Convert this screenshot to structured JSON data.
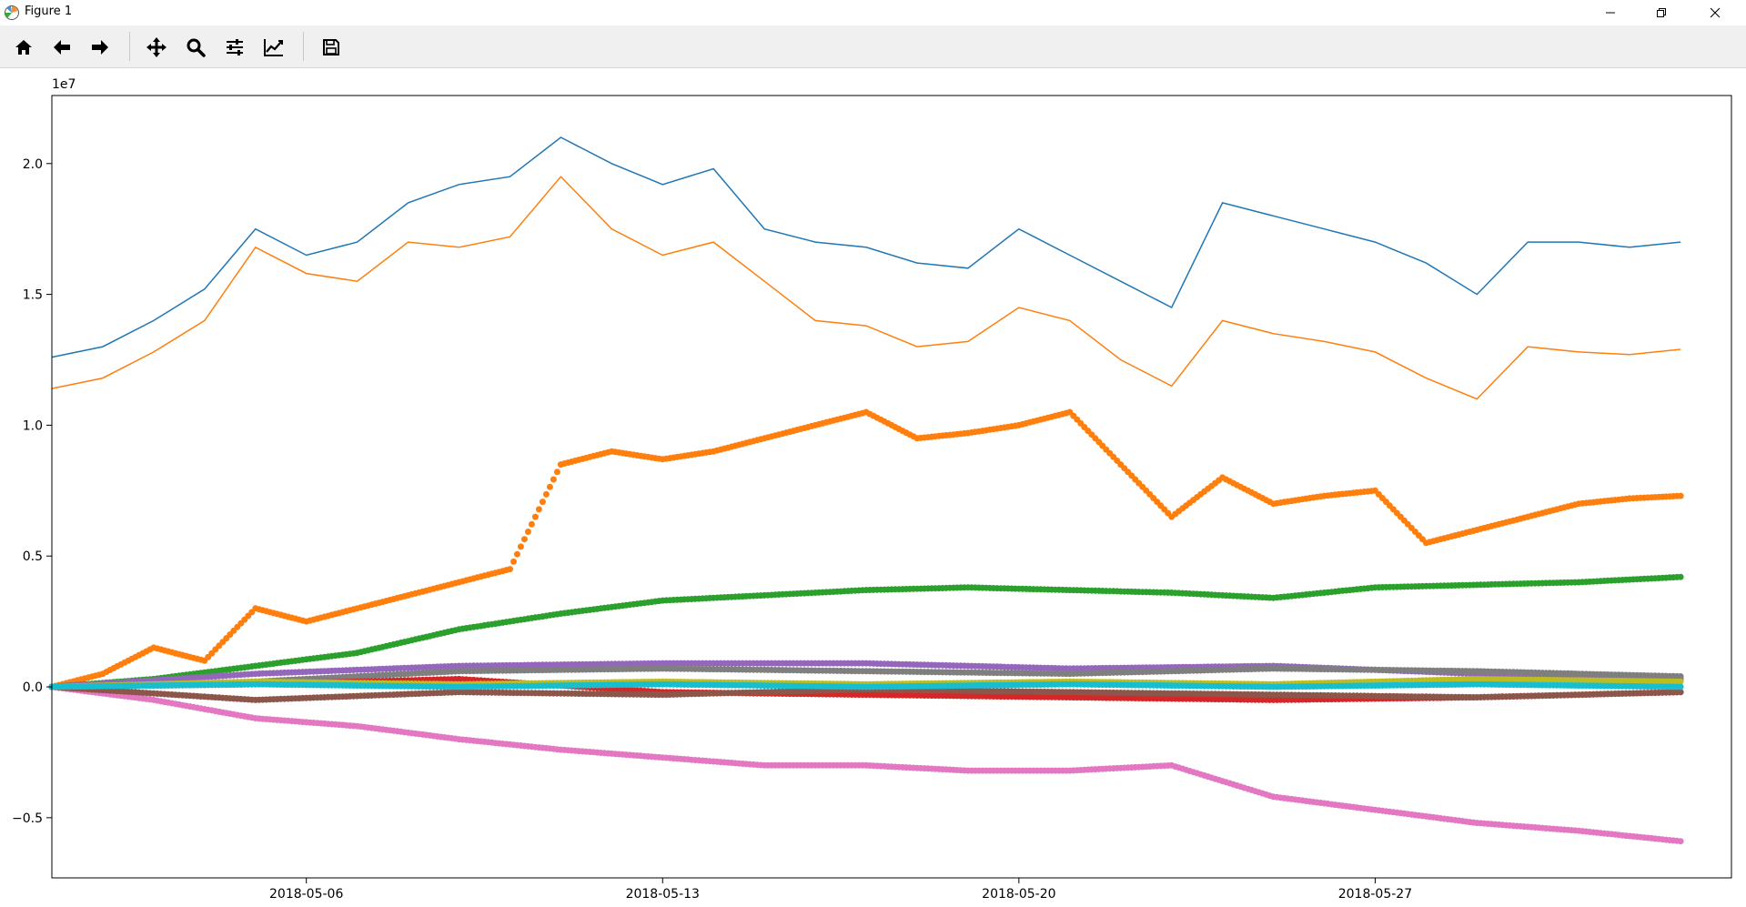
{
  "window": {
    "title": "Figure 1",
    "controls": [
      "minimize",
      "maximize",
      "close"
    ]
  },
  "toolbar": {
    "buttons": [
      {
        "name": "home-button",
        "icon": "home-icon"
      },
      {
        "name": "back-button",
        "icon": "arrow-left-icon"
      },
      {
        "name": "forward-button",
        "icon": "arrow-right-icon"
      },
      {
        "name": "pan-button",
        "icon": "move-arrows-icon"
      },
      {
        "name": "zoom-button",
        "icon": "magnifier-icon"
      },
      {
        "name": "subplots-button",
        "icon": "sliders-icon"
      },
      {
        "name": "edit-axes-button",
        "icon": "line-chart-icon"
      },
      {
        "name": "save-button",
        "icon": "floppy-disk-icon"
      }
    ]
  },
  "chart_data": {
    "type": "line",
    "offset_label": "1e7",
    "xlim": [
      "2018-05-01",
      "2018-06-03"
    ],
    "ylim": [
      -0.73,
      2.26
    ],
    "x_ticks": [
      "2018-05-06",
      "2018-05-13",
      "2018-05-20",
      "2018-05-27"
    ],
    "y_ticks": [
      "2.0",
      "1.5",
      "1.0",
      "0.5",
      "0.0",
      "−0.5"
    ],
    "y_tick_values": [
      2.0,
      1.5,
      1.0,
      0.5,
      0.0,
      -0.5
    ],
    "grid": false,
    "legend": "none",
    "series": [
      {
        "style": "line",
        "color": "#1f77b4",
        "x": [
          "2018-05-01",
          "2018-05-02",
          "2018-05-03",
          "2018-05-04",
          "2018-05-05",
          "2018-05-06",
          "2018-05-07",
          "2018-05-08",
          "2018-05-09",
          "2018-05-10",
          "2018-05-11",
          "2018-05-12",
          "2018-05-13",
          "2018-05-14",
          "2018-05-15",
          "2018-05-16",
          "2018-05-17",
          "2018-05-18",
          "2018-05-19",
          "2018-05-20",
          "2018-05-21",
          "2018-05-22",
          "2018-05-23",
          "2018-05-24",
          "2018-05-25",
          "2018-05-26",
          "2018-05-27",
          "2018-05-28",
          "2018-05-29",
          "2018-05-30",
          "2018-05-31",
          "2018-06-01",
          "2018-06-02"
        ],
        "y": [
          1.26,
          1.3,
          1.4,
          1.52,
          1.75,
          1.65,
          1.7,
          1.85,
          1.92,
          1.95,
          2.1,
          2.0,
          1.92,
          1.98,
          1.75,
          1.7,
          1.68,
          1.62,
          1.6,
          1.75,
          1.65,
          1.55,
          1.45,
          1.85,
          1.8,
          1.75,
          1.7,
          1.62,
          1.5,
          1.7,
          1.7,
          1.68,
          1.7
        ]
      },
      {
        "style": "line",
        "color": "#ff7f0e",
        "x": [
          "2018-05-01",
          "2018-05-02",
          "2018-05-03",
          "2018-05-04",
          "2018-05-05",
          "2018-05-06",
          "2018-05-07",
          "2018-05-08",
          "2018-05-09",
          "2018-05-10",
          "2018-05-11",
          "2018-05-12",
          "2018-05-13",
          "2018-05-14",
          "2018-05-15",
          "2018-05-16",
          "2018-05-17",
          "2018-05-18",
          "2018-05-19",
          "2018-05-20",
          "2018-05-21",
          "2018-05-22",
          "2018-05-23",
          "2018-05-24",
          "2018-05-25",
          "2018-05-26",
          "2018-05-27",
          "2018-05-28",
          "2018-05-29",
          "2018-05-30",
          "2018-05-31",
          "2018-06-01",
          "2018-06-02"
        ],
        "y": [
          1.14,
          1.18,
          1.28,
          1.4,
          1.68,
          1.58,
          1.55,
          1.7,
          1.68,
          1.72,
          1.95,
          1.75,
          1.65,
          1.7,
          1.55,
          1.4,
          1.38,
          1.3,
          1.32,
          1.45,
          1.4,
          1.25,
          1.15,
          1.4,
          1.35,
          1.32,
          1.28,
          1.18,
          1.1,
          1.3,
          1.28,
          1.27,
          1.29
        ]
      },
      {
        "style": "scatter",
        "color": "#ff7f0e",
        "x": [
          "2018-05-01",
          "2018-05-02",
          "2018-05-03",
          "2018-05-04",
          "2018-05-05",
          "2018-05-06",
          "2018-05-07",
          "2018-05-08",
          "2018-05-09",
          "2018-05-10",
          "2018-05-11",
          "2018-05-12",
          "2018-05-13",
          "2018-05-14",
          "2018-05-15",
          "2018-05-16",
          "2018-05-17",
          "2018-05-18",
          "2018-05-19",
          "2018-05-20",
          "2018-05-21",
          "2018-05-22",
          "2018-05-23",
          "2018-05-24",
          "2018-05-25",
          "2018-05-26",
          "2018-05-27",
          "2018-05-28",
          "2018-05-29",
          "2018-05-30",
          "2018-05-31",
          "2018-06-01",
          "2018-06-02"
        ],
        "y": [
          0.0,
          0.05,
          0.15,
          0.1,
          0.3,
          0.25,
          0.3,
          0.35,
          0.4,
          0.45,
          0.85,
          0.9,
          0.87,
          0.9,
          0.95,
          1.0,
          1.05,
          0.95,
          0.97,
          1.0,
          1.05,
          0.85,
          0.65,
          0.8,
          0.7,
          0.73,
          0.75,
          0.55,
          0.6,
          0.65,
          0.7,
          0.72,
          0.73
        ]
      },
      {
        "style": "scatter",
        "color": "#2ca02c",
        "x": [
          "2018-05-01",
          "2018-05-03",
          "2018-05-05",
          "2018-05-07",
          "2018-05-09",
          "2018-05-11",
          "2018-05-13",
          "2018-05-15",
          "2018-05-17",
          "2018-05-19",
          "2018-05-21",
          "2018-05-23",
          "2018-05-25",
          "2018-05-27",
          "2018-05-29",
          "2018-05-31",
          "2018-06-02"
        ],
        "y": [
          0.0,
          0.03,
          0.08,
          0.13,
          0.22,
          0.28,
          0.33,
          0.35,
          0.37,
          0.38,
          0.37,
          0.36,
          0.34,
          0.38,
          0.39,
          0.4,
          0.42
        ]
      },
      {
        "style": "scatter",
        "color": "#e377c2",
        "x": [
          "2018-05-01",
          "2018-05-03",
          "2018-05-05",
          "2018-05-07",
          "2018-05-09",
          "2018-05-11",
          "2018-05-13",
          "2018-05-15",
          "2018-05-17",
          "2018-05-19",
          "2018-05-21",
          "2018-05-23",
          "2018-05-25",
          "2018-05-27",
          "2018-05-29",
          "2018-05-31",
          "2018-06-02"
        ],
        "y": [
          0.0,
          -0.05,
          -0.12,
          -0.15,
          -0.2,
          -0.24,
          -0.27,
          -0.3,
          -0.3,
          -0.32,
          -0.32,
          -0.3,
          -0.42,
          -0.47,
          -0.52,
          -0.55,
          -0.59
        ]
      },
      {
        "style": "scatter",
        "color": "#9467bd",
        "x": [
          "2018-05-01",
          "2018-05-05",
          "2018-05-09",
          "2018-05-13",
          "2018-05-17",
          "2018-05-21",
          "2018-05-25",
          "2018-05-29",
          "2018-06-02"
        ],
        "y": [
          0.0,
          0.05,
          0.08,
          0.09,
          0.09,
          0.07,
          0.08,
          0.05,
          0.03
        ]
      },
      {
        "style": "scatter",
        "color": "#7f7f7f",
        "x": [
          "2018-05-01",
          "2018-05-05",
          "2018-05-09",
          "2018-05-13",
          "2018-05-17",
          "2018-05-21",
          "2018-05-25",
          "2018-05-29",
          "2018-06-02"
        ],
        "y": [
          0.0,
          0.02,
          0.06,
          0.07,
          0.06,
          0.05,
          0.07,
          0.06,
          0.04
        ]
      },
      {
        "style": "scatter",
        "color": "#d62728",
        "x": [
          "2018-05-01",
          "2018-05-05",
          "2018-05-09",
          "2018-05-13",
          "2018-05-17",
          "2018-05-21",
          "2018-05-25",
          "2018-05-29",
          "2018-06-02"
        ],
        "y": [
          0.0,
          0.01,
          0.03,
          -0.02,
          -0.03,
          -0.04,
          -0.05,
          -0.04,
          -0.02
        ]
      },
      {
        "style": "scatter",
        "color": "#8c564b",
        "x": [
          "2018-05-01",
          "2018-05-05",
          "2018-05-09",
          "2018-05-13",
          "2018-05-17",
          "2018-05-21",
          "2018-05-25",
          "2018-05-29",
          "2018-06-02"
        ],
        "y": [
          0.0,
          -0.05,
          -0.02,
          -0.03,
          -0.01,
          -0.02,
          -0.03,
          -0.04,
          -0.02
        ]
      },
      {
        "style": "scatter",
        "color": "#bcbd22",
        "x": [
          "2018-05-01",
          "2018-05-05",
          "2018-05-09",
          "2018-05-13",
          "2018-05-17",
          "2018-05-21",
          "2018-05-25",
          "2018-05-29",
          "2018-06-02"
        ],
        "y": [
          0.0,
          0.02,
          0.01,
          0.02,
          0.01,
          0.02,
          0.01,
          0.03,
          0.02
        ]
      },
      {
        "style": "scatter",
        "color": "#17becf",
        "x": [
          "2018-05-01",
          "2018-05-05",
          "2018-05-09",
          "2018-05-13",
          "2018-05-17",
          "2018-05-21",
          "2018-05-25",
          "2018-05-29",
          "2018-06-02"
        ],
        "y": [
          0.0,
          0.01,
          0.0,
          0.01,
          0.0,
          0.01,
          0.0,
          0.01,
          0.0
        ]
      }
    ]
  }
}
